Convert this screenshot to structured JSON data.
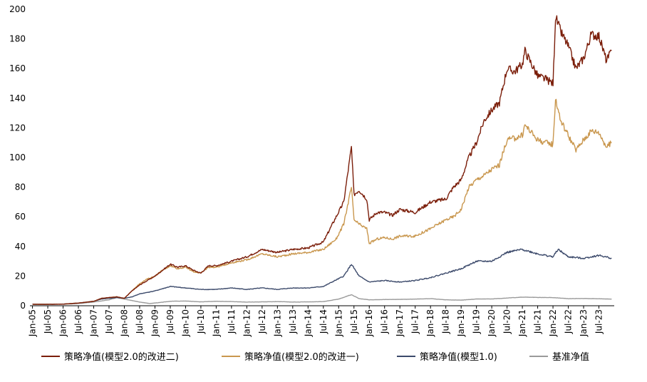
{
  "chart_data": {
    "type": "line",
    "title": "",
    "xlabel": "",
    "ylabel": "",
    "ylim": [
      0,
      200
    ],
    "yticks": [
      0,
      20,
      40,
      60,
      80,
      100,
      120,
      140,
      160,
      180,
      200
    ],
    "xlim": [
      "2005-01",
      "2023-12"
    ],
    "xtick_labels": [
      "Jan-05",
      "Jul-05",
      "Jan-06",
      "Jul-06",
      "Jan-07",
      "Jul-07",
      "Jan-08",
      "Jul-08",
      "Jan-09",
      "Jul-09",
      "Jan-10",
      "Jul-10",
      "Jan-11",
      "Jul-11",
      "Jan-12",
      "Jul-12",
      "Jan-13",
      "Jul-13",
      "Jan-14",
      "Jul-14",
      "Jan-15",
      "Jul-15",
      "Jan-16",
      "Jul-16",
      "Jan-17",
      "Jul-17",
      "Jan-18",
      "Jul-18",
      "Jan-19",
      "Jul-19",
      "Jan-20",
      "Jul-20",
      "Jan-21",
      "Jul-21",
      "Jan-22",
      "Jul-22",
      "Jan-23",
      "Jul-23"
    ],
    "grid": false,
    "legend_position": "bottom",
    "series": [
      {
        "name": "策略净值(模型2.0的改进二)",
        "color": "#7B1E0A",
        "points": [
          [
            "2005-01",
            1
          ],
          [
            "2005-07",
            1
          ],
          [
            "2006-01",
            1.1
          ],
          [
            "2006-07",
            1.8
          ],
          [
            "2007-01",
            3
          ],
          [
            "2007-04",
            5
          ],
          [
            "2007-07",
            5.5
          ],
          [
            "2007-10",
            6
          ],
          [
            "2008-01",
            5
          ],
          [
            "2008-04",
            10
          ],
          [
            "2008-07",
            14
          ],
          [
            "2008-10",
            17
          ],
          [
            "2009-01",
            20
          ],
          [
            "2009-04",
            24
          ],
          [
            "2009-07",
            28
          ],
          [
            "2009-10",
            26
          ],
          [
            "2010-01",
            27
          ],
          [
            "2010-04",
            24
          ],
          [
            "2010-07",
            22
          ],
          [
            "2010-10",
            27
          ],
          [
            "2011-01",
            27
          ],
          [
            "2011-07",
            30
          ],
          [
            "2012-01",
            33
          ],
          [
            "2012-07",
            38
          ],
          [
            "2013-01",
            36
          ],
          [
            "2013-07",
            38
          ],
          [
            "2014-01",
            39
          ],
          [
            "2014-07",
            43
          ],
          [
            "2014-12",
            60
          ],
          [
            "2015-03",
            70
          ],
          [
            "2015-06",
            107
          ],
          [
            "2015-07",
            75
          ],
          [
            "2015-09",
            78
          ],
          [
            "2015-12",
            72
          ],
          [
            "2016-01",
            58
          ],
          [
            "2016-04",
            63
          ],
          [
            "2016-07",
            63
          ],
          [
            "2016-10",
            61
          ],
          [
            "2017-01",
            65
          ],
          [
            "2017-07",
            63
          ],
          [
            "2018-01",
            70
          ],
          [
            "2018-07",
            72
          ],
          [
            "2018-10",
            80
          ],
          [
            "2019-01",
            85
          ],
          [
            "2019-04",
            100
          ],
          [
            "2019-07",
            110
          ],
          [
            "2019-10",
            125
          ],
          [
            "2020-01",
            132
          ],
          [
            "2020-04",
            137
          ],
          [
            "2020-07",
            160
          ],
          [
            "2020-10",
            158
          ],
          [
            "2021-01",
            163
          ],
          [
            "2021-02",
            172
          ],
          [
            "2021-07",
            155
          ],
          [
            "2021-10",
            153
          ],
          [
            "2022-01",
            150
          ],
          [
            "2022-02",
            195
          ],
          [
            "2022-04",
            185
          ],
          [
            "2022-07",
            175
          ],
          [
            "2022-10",
            160
          ],
          [
            "2023-01",
            167
          ],
          [
            "2023-04",
            183
          ],
          [
            "2023-07",
            182
          ],
          [
            "2023-10",
            165
          ],
          [
            "2023-12",
            172
          ]
        ]
      },
      {
        "name": "策略净值(模型2.0的改进一)",
        "color": "#C9974E",
        "points": [
          [
            "2005-01",
            1
          ],
          [
            "2005-07",
            1
          ],
          [
            "2006-01",
            1.1
          ],
          [
            "2006-07",
            1.8
          ],
          [
            "2007-01",
            3
          ],
          [
            "2007-04",
            5
          ],
          [
            "2007-07",
            5.5
          ],
          [
            "2007-10",
            6
          ],
          [
            "2008-01",
            5
          ],
          [
            "2008-04",
            10
          ],
          [
            "2008-07",
            15
          ],
          [
            "2008-10",
            18
          ],
          [
            "2009-01",
            20
          ],
          [
            "2009-04",
            24
          ],
          [
            "2009-07",
            27
          ],
          [
            "2009-10",
            25
          ],
          [
            "2010-01",
            26
          ],
          [
            "2010-04",
            23
          ],
          [
            "2010-07",
            22
          ],
          [
            "2010-10",
            26
          ],
          [
            "2011-01",
            26
          ],
          [
            "2011-07",
            29
          ],
          [
            "2012-01",
            31
          ],
          [
            "2012-07",
            35
          ],
          [
            "2013-01",
            33
          ],
          [
            "2013-07",
            35
          ],
          [
            "2014-01",
            36
          ],
          [
            "2014-07",
            38
          ],
          [
            "2014-12",
            45
          ],
          [
            "2015-03",
            55
          ],
          [
            "2015-06",
            80
          ],
          [
            "2015-07",
            58
          ],
          [
            "2015-09",
            55
          ],
          [
            "2015-12",
            52
          ],
          [
            "2016-01",
            42
          ],
          [
            "2016-04",
            45
          ],
          [
            "2016-07",
            46
          ],
          [
            "2016-10",
            45
          ],
          [
            "2017-01",
            47
          ],
          [
            "2017-07",
            47
          ],
          [
            "2018-01",
            52
          ],
          [
            "2018-07",
            58
          ],
          [
            "2018-10",
            60
          ],
          [
            "2019-01",
            65
          ],
          [
            "2019-04",
            80
          ],
          [
            "2019-07",
            85
          ],
          [
            "2019-10",
            88
          ],
          [
            "2020-01",
            92
          ],
          [
            "2020-04",
            95
          ],
          [
            "2020-07",
            112
          ],
          [
            "2020-10",
            113
          ],
          [
            "2021-01",
            115
          ],
          [
            "2021-02",
            122
          ],
          [
            "2021-07",
            112
          ],
          [
            "2021-10",
            110
          ],
          [
            "2022-01",
            109
          ],
          [
            "2022-02",
            140
          ],
          [
            "2022-04",
            125
          ],
          [
            "2022-07",
            115
          ],
          [
            "2022-10",
            105
          ],
          [
            "2023-01",
            112
          ],
          [
            "2023-04",
            118
          ],
          [
            "2023-07",
            117
          ],
          [
            "2023-10",
            107
          ],
          [
            "2023-12",
            110
          ]
        ]
      },
      {
        "name": "策略净值(模型1.0)",
        "color": "#3C4A6B",
        "points": [
          [
            "2005-01",
            1
          ],
          [
            "2005-07",
            1
          ],
          [
            "2006-01",
            1.1
          ],
          [
            "2006-07",
            1.8
          ],
          [
            "2007-01",
            3
          ],
          [
            "2007-04",
            4.5
          ],
          [
            "2007-07",
            5
          ],
          [
            "2007-10",
            5.5
          ],
          [
            "2008-01",
            5
          ],
          [
            "2008-04",
            6
          ],
          [
            "2008-07",
            8
          ],
          [
            "2008-10",
            9
          ],
          [
            "2009-01",
            10
          ],
          [
            "2009-07",
            13
          ],
          [
            "2010-01",
            12
          ],
          [
            "2010-07",
            11
          ],
          [
            "2011-01",
            11
          ],
          [
            "2011-07",
            12
          ],
          [
            "2012-01",
            11
          ],
          [
            "2012-07",
            12
          ],
          [
            "2013-01",
            11
          ],
          [
            "2013-07",
            12
          ],
          [
            "2014-01",
            12
          ],
          [
            "2014-07",
            13
          ],
          [
            "2015-03",
            20
          ],
          [
            "2015-06",
            28
          ],
          [
            "2015-09",
            20
          ],
          [
            "2016-01",
            16
          ],
          [
            "2016-07",
            17
          ],
          [
            "2017-01",
            16
          ],
          [
            "2017-07",
            17
          ],
          [
            "2018-01",
            19
          ],
          [
            "2018-07",
            22
          ],
          [
            "2019-01",
            25
          ],
          [
            "2019-07",
            30
          ],
          [
            "2020-01",
            30
          ],
          [
            "2020-07",
            36
          ],
          [
            "2021-01",
            38
          ],
          [
            "2021-07",
            35
          ],
          [
            "2022-01",
            33
          ],
          [
            "2022-03",
            38
          ],
          [
            "2022-07",
            33
          ],
          [
            "2023-01",
            32
          ],
          [
            "2023-07",
            34
          ],
          [
            "2023-12",
            32
          ]
        ]
      },
      {
        "name": "基准净值",
        "color": "#9A9A9A",
        "points": [
          [
            "2005-01",
            1
          ],
          [
            "2005-07",
            0.9
          ],
          [
            "2006-01",
            1.0
          ],
          [
            "2006-07",
            1.5
          ],
          [
            "2007-01",
            2.5
          ],
          [
            "2007-07",
            4
          ],
          [
            "2007-10",
            5.5
          ],
          [
            "2008-01",
            4.5
          ],
          [
            "2008-07",
            2.5
          ],
          [
            "2008-11",
            1.5
          ],
          [
            "2009-07",
            3
          ],
          [
            "2010-01",
            3.2
          ],
          [
            "2010-07",
            2.6
          ],
          [
            "2011-01",
            3
          ],
          [
            "2011-07",
            2.8
          ],
          [
            "2012-01",
            2.5
          ],
          [
            "2012-07",
            2.6
          ],
          [
            "2013-01",
            2.8
          ],
          [
            "2013-07",
            2.5
          ],
          [
            "2014-01",
            2.6
          ],
          [
            "2014-07",
            2.8
          ],
          [
            "2015-01",
            4.5
          ],
          [
            "2015-06",
            7.5
          ],
          [
            "2015-09",
            4.8
          ],
          [
            "2016-01",
            4
          ],
          [
            "2016-07",
            4.2
          ],
          [
            "2017-01",
            4.3
          ],
          [
            "2017-07",
            4.5
          ],
          [
            "2018-01",
            4.8
          ],
          [
            "2018-07",
            4
          ],
          [
            "2019-01",
            3.8
          ],
          [
            "2019-07",
            4.5
          ],
          [
            "2020-01",
            4.6
          ],
          [
            "2020-07",
            5.2
          ],
          [
            "2021-01",
            5.8
          ],
          [
            "2021-07",
            5.6
          ],
          [
            "2022-01",
            5.5
          ],
          [
            "2022-07",
            4.8
          ],
          [
            "2023-01",
            4.9
          ],
          [
            "2023-07",
            4.7
          ],
          [
            "2023-12",
            4.5
          ]
        ]
      }
    ]
  }
}
